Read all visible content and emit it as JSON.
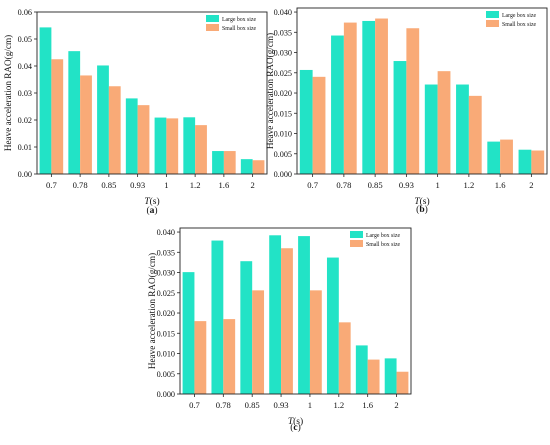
{
  "colors": {
    "large": "#22e3c6",
    "small": "#f9aa77",
    "edge": "#333333"
  },
  "chart_data": [
    {
      "type": "bar",
      "panel_label": "(a)",
      "ylabel": "Heave acceleration RAO(g/cm)",
      "xlabel": "T(s)",
      "categories": [
        "0.7",
        "0.78",
        "0.85",
        "0.93",
        "1",
        "1.2",
        "1.6",
        "2"
      ],
      "ylim": [
        0,
        0.06
      ],
      "yticks": [
        "0.00",
        "0.01",
        "0.02",
        "0.03",
        "0.04",
        "0.05",
        "0.06"
      ],
      "legend_position": "top-right",
      "series": [
        {
          "name": "Large box size",
          "values": [
            0.0543,
            0.0455,
            0.0402,
            0.028,
            0.0209,
            0.021,
            0.0085,
            0.0055
          ]
        },
        {
          "name": "Small box size",
          "values": [
            0.0425,
            0.0365,
            0.0325,
            0.0255,
            0.0206,
            0.0181,
            0.0085,
            0.0051
          ]
        }
      ]
    },
    {
      "type": "bar",
      "panel_label": "(b)",
      "ylabel": "Heave acceleration RAO(g/cm)",
      "xlabel": "T(s)",
      "categories": [
        "0.7",
        "0.78",
        "0.85",
        "0.93",
        "1",
        "1.2",
        "1.6",
        "2"
      ],
      "ylim": [
        0,
        0.041
      ],
      "yticks": [
        "0.000",
        "0.005",
        "0.010",
        "0.015",
        "0.020",
        "0.025",
        "0.030",
        "0.035",
        "0.040"
      ],
      "legend_position": "top-right",
      "series": [
        {
          "name": "Large box size",
          "values": [
            0.0257,
            0.0342,
            0.0378,
            0.0279,
            0.0221,
            0.0221,
            0.008,
            0.006
          ]
        },
        {
          "name": "Small box size",
          "values": [
            0.024,
            0.0374,
            0.0384,
            0.036,
            0.0254,
            0.0193,
            0.0085,
            0.0058
          ]
        }
      ]
    },
    {
      "type": "bar",
      "panel_label": "(c)",
      "ylabel": "Heave acceleration RAO(g/cm)",
      "xlabel": "T(s)",
      "categories": [
        "0.7",
        "0.78",
        "0.85",
        "0.93",
        "1",
        "1.2",
        "1.6",
        "2"
      ],
      "ylim": [
        0,
        0.041
      ],
      "yticks": [
        "0.000",
        "0.005",
        "0.010",
        "0.015",
        "0.020",
        "0.025",
        "0.030",
        "0.035",
        "0.040"
      ],
      "legend_position": "top-right",
      "series": [
        {
          "name": "Large box size",
          "values": [
            0.0301,
            0.0379,
            0.0328,
            0.0392,
            0.039,
            0.0337,
            0.012,
            0.0088
          ]
        },
        {
          "name": "Small box size",
          "values": [
            0.018,
            0.0185,
            0.0256,
            0.036,
            0.0256,
            0.0177,
            0.0085,
            0.0055
          ]
        }
      ]
    }
  ]
}
